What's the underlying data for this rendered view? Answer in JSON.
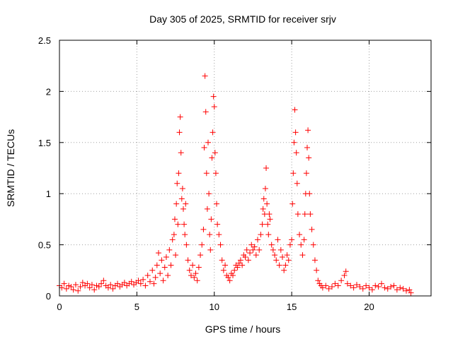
{
  "chart_data": {
    "type": "scatter",
    "title": "Day 305 of 2025, SRMTID for receiver srjv",
    "xlabel": "GPS time / hours",
    "ylabel": "SRMTID / TECUs",
    "xlim": [
      0,
      24
    ],
    "ylim": [
      0,
      2.5
    ],
    "xticks": [
      0,
      5,
      10,
      15,
      20
    ],
    "xtick_labels": [
      "0",
      "5",
      "10",
      "15",
      "20"
    ],
    "yticks": [
      0,
      0.5,
      1,
      1.5,
      2,
      2.5
    ],
    "ytick_labels": [
      "0",
      "0.5",
      "1",
      "1.5",
      "2",
      "2.5"
    ],
    "grid": true,
    "marker": "plus",
    "color": "#ff0000",
    "series": [
      {
        "name": "srjv",
        "points": [
          [
            0.0,
            0.1
          ],
          [
            0.15,
            0.08
          ],
          [
            0.3,
            0.12
          ],
          [
            0.45,
            0.07
          ],
          [
            0.6,
            0.1
          ],
          [
            0.75,
            0.09
          ],
          [
            0.9,
            0.06
          ],
          [
            1.05,
            0.11
          ],
          [
            1.2,
            0.05
          ],
          [
            1.35,
            0.09
          ],
          [
            1.5,
            0.13
          ],
          [
            1.65,
            0.1
          ],
          [
            1.8,
            0.12
          ],
          [
            1.95,
            0.08
          ],
          [
            2.1,
            0.11
          ],
          [
            2.25,
            0.06
          ],
          [
            2.4,
            0.1
          ],
          [
            2.55,
            0.09
          ],
          [
            2.7,
            0.12
          ],
          [
            2.85,
            0.15
          ],
          [
            3.0,
            0.1
          ],
          [
            3.15,
            0.08
          ],
          [
            3.3,
            0.11
          ],
          [
            3.45,
            0.07
          ],
          [
            3.6,
            0.1
          ],
          [
            3.75,
            0.12
          ],
          [
            3.9,
            0.09
          ],
          [
            4.05,
            0.11
          ],
          [
            4.2,
            0.13
          ],
          [
            4.35,
            0.1
          ],
          [
            4.5,
            0.12
          ],
          [
            4.65,
            0.14
          ],
          [
            4.8,
            0.11
          ],
          [
            4.95,
            0.13
          ],
          [
            5.1,
            0.15
          ],
          [
            5.25,
            0.12
          ],
          [
            5.4,
            0.16
          ],
          [
            5.55,
            0.1
          ],
          [
            5.7,
            0.2
          ],
          [
            5.85,
            0.14
          ],
          [
            6.0,
            0.25
          ],
          [
            6.1,
            0.12
          ],
          [
            6.2,
            0.18
          ],
          [
            6.3,
            0.3
          ],
          [
            6.4,
            0.42
          ],
          [
            6.5,
            0.22
          ],
          [
            6.6,
            0.35
          ],
          [
            6.7,
            0.15
          ],
          [
            6.8,
            0.28
          ],
          [
            6.9,
            0.38
          ],
          [
            7.0,
            0.2
          ],
          [
            7.1,
            0.45
          ],
          [
            7.2,
            0.3
          ],
          [
            7.3,
            0.55
          ],
          [
            7.4,
            0.6
          ],
          [
            7.45,
            0.75
          ],
          [
            7.5,
            0.4
          ],
          [
            7.55,
            0.9
          ],
          [
            7.6,
            1.1
          ],
          [
            7.65,
            0.7
          ],
          [
            7.7,
            1.2
          ],
          [
            7.75,
            1.6
          ],
          [
            7.8,
            1.75
          ],
          [
            7.85,
            1.4
          ],
          [
            7.9,
            0.95
          ],
          [
            7.95,
            1.05
          ],
          [
            8.0,
            0.85
          ],
          [
            8.05,
            0.7
          ],
          [
            8.1,
            0.6
          ],
          [
            8.15,
            0.9
          ],
          [
            8.2,
            0.5
          ],
          [
            8.3,
            0.35
          ],
          [
            8.4,
            0.25
          ],
          [
            8.5,
            0.2
          ],
          [
            8.6,
            0.3
          ],
          [
            8.7,
            0.18
          ],
          [
            8.8,
            0.22
          ],
          [
            8.9,
            0.15
          ],
          [
            9.0,
            0.28
          ],
          [
            9.1,
            0.4
          ],
          [
            9.2,
            0.5
          ],
          [
            9.3,
            0.65
          ],
          [
            9.35,
            1.45
          ],
          [
            9.4,
            2.15
          ],
          [
            9.45,
            1.8
          ],
          [
            9.5,
            1.2
          ],
          [
            9.55,
            0.85
          ],
          [
            9.6,
            1.5
          ],
          [
            9.65,
            1.0
          ],
          [
            9.7,
            0.6
          ],
          [
            9.75,
            0.45
          ],
          [
            9.8,
            0.75
          ],
          [
            9.85,
            1.35
          ],
          [
            9.9,
            1.6
          ],
          [
            9.95,
            1.95
          ],
          [
            10.0,
            1.85
          ],
          [
            10.05,
            1.4
          ],
          [
            10.1,
            1.2
          ],
          [
            10.15,
            0.9
          ],
          [
            10.2,
            0.7
          ],
          [
            10.3,
            0.6
          ],
          [
            10.4,
            0.5
          ],
          [
            10.5,
            0.35
          ],
          [
            10.6,
            0.25
          ],
          [
            10.7,
            0.3
          ],
          [
            10.8,
            0.2
          ],
          [
            10.9,
            0.18
          ],
          [
            11.0,
            0.15
          ],
          [
            11.1,
            0.22
          ],
          [
            11.2,
            0.2
          ],
          [
            11.3,
            0.25
          ],
          [
            11.4,
            0.3
          ],
          [
            11.5,
            0.28
          ],
          [
            11.6,
            0.32
          ],
          [
            11.7,
            0.35
          ],
          [
            11.8,
            0.3
          ],
          [
            11.9,
            0.4
          ],
          [
            12.0,
            0.38
          ],
          [
            12.1,
            0.45
          ],
          [
            12.2,
            0.35
          ],
          [
            12.3,
            0.42
          ],
          [
            12.4,
            0.5
          ],
          [
            12.5,
            0.45
          ],
          [
            12.6,
            0.48
          ],
          [
            12.7,
            0.4
          ],
          [
            12.8,
            0.55
          ],
          [
            12.9,
            0.45
          ],
          [
            13.0,
            0.6
          ],
          [
            13.1,
            0.7
          ],
          [
            13.15,
            0.85
          ],
          [
            13.2,
            0.95
          ],
          [
            13.25,
            0.8
          ],
          [
            13.3,
            1.05
          ],
          [
            13.35,
            1.25
          ],
          [
            13.4,
            0.9
          ],
          [
            13.45,
            0.7
          ],
          [
            13.5,
            0.6
          ],
          [
            13.55,
            0.8
          ],
          [
            13.6,
            0.75
          ],
          [
            13.7,
            0.5
          ],
          [
            13.8,
            0.45
          ],
          [
            13.9,
            0.4
          ],
          [
            14.0,
            0.35
          ],
          [
            14.1,
            0.55
          ],
          [
            14.2,
            0.3
          ],
          [
            14.3,
            0.45
          ],
          [
            14.4,
            0.38
          ],
          [
            14.5,
            0.25
          ],
          [
            14.6,
            0.3
          ],
          [
            14.7,
            0.4
          ],
          [
            14.8,
            0.35
          ],
          [
            14.9,
            0.5
          ],
          [
            15.0,
            0.55
          ],
          [
            15.05,
            0.9
          ],
          [
            15.1,
            1.2
          ],
          [
            15.15,
            1.5
          ],
          [
            15.2,
            1.82
          ],
          [
            15.25,
            1.6
          ],
          [
            15.3,
            1.4
          ],
          [
            15.35,
            1.1
          ],
          [
            15.4,
            0.8
          ],
          [
            15.5,
            0.6
          ],
          [
            15.6,
            0.5
          ],
          [
            15.7,
            0.4
          ],
          [
            15.8,
            0.55
          ],
          [
            15.85,
            0.8
          ],
          [
            15.9,
            1.0
          ],
          [
            15.95,
            1.2
          ],
          [
            16.0,
            1.45
          ],
          [
            16.05,
            1.62
          ],
          [
            16.1,
            1.35
          ],
          [
            16.15,
            1.0
          ],
          [
            16.2,
            0.8
          ],
          [
            16.3,
            0.65
          ],
          [
            16.4,
            0.5
          ],
          [
            16.5,
            0.35
          ],
          [
            16.6,
            0.25
          ],
          [
            16.7,
            0.15
          ],
          [
            16.8,
            0.12
          ],
          [
            16.9,
            0.1
          ],
          [
            17.0,
            0.08
          ],
          [
            17.2,
            0.1
          ],
          [
            17.4,
            0.07
          ],
          [
            17.6,
            0.09
          ],
          [
            17.8,
            0.12
          ],
          [
            18.0,
            0.1
          ],
          [
            18.2,
            0.15
          ],
          [
            18.4,
            0.2
          ],
          [
            18.5,
            0.24
          ],
          [
            18.6,
            0.12
          ],
          [
            18.8,
            0.1
          ],
          [
            19.0,
            0.08
          ],
          [
            19.2,
            0.11
          ],
          [
            19.4,
            0.09
          ],
          [
            19.6,
            0.07
          ],
          [
            19.8,
            0.1
          ],
          [
            20.0,
            0.08
          ],
          [
            20.2,
            0.06
          ],
          [
            20.4,
            0.1
          ],
          [
            20.6,
            0.09
          ],
          [
            20.8,
            0.12
          ],
          [
            21.0,
            0.08
          ],
          [
            21.2,
            0.07
          ],
          [
            21.4,
            0.09
          ],
          [
            21.6,
            0.1
          ],
          [
            21.8,
            0.06
          ],
          [
            22.0,
            0.08
          ],
          [
            22.2,
            0.07
          ],
          [
            22.4,
            0.05
          ],
          [
            22.6,
            0.06
          ],
          [
            22.7,
            0.03
          ]
        ]
      }
    ]
  }
}
